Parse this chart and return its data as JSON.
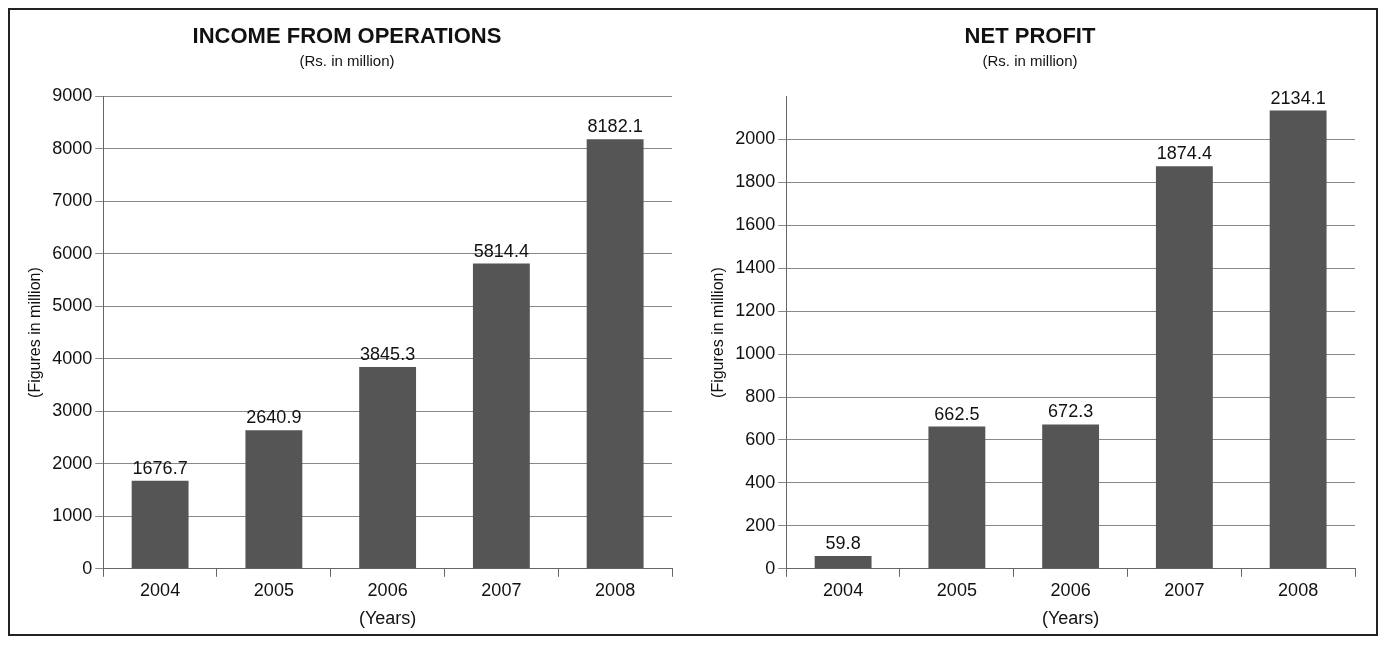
{
  "chart_data": [
    {
      "type": "bar",
      "title": "INCOME FROM OPERATIONS",
      "subtitle": "(Rs. in million)",
      "xlabel": "(Years)",
      "ylabel": "(Figures in million)",
      "categories": [
        "2004",
        "2005",
        "2006",
        "2007",
        "2008"
      ],
      "values": [
        1676.7,
        2640.9,
        3845.3,
        5814.4,
        8182.1
      ],
      "color": "#555555",
      "ylim": [
        0,
        9000
      ],
      "yticks": [
        0,
        1000,
        2000,
        3000,
        4000,
        5000,
        6000,
        7000,
        8000,
        9000
      ],
      "grid": "y",
      "data_labels": true
    },
    {
      "type": "bar",
      "title": "NET PROFIT",
      "subtitle": "(Rs. in million)",
      "xlabel": "(Years)",
      "ylabel": "(Figures in million)",
      "categories": [
        "2004",
        "2005",
        "2006",
        "2007",
        "2008"
      ],
      "values": [
        59.8,
        662.5,
        672.3,
        1874.4,
        2134.1
      ],
      "color": "#555555",
      "ylim": [
        0,
        2200
      ],
      "yticks": [
        0,
        200,
        400,
        600,
        800,
        1000,
        1200,
        1400,
        1600,
        1800,
        2000
      ],
      "grid": "y",
      "data_labels": true
    }
  ]
}
